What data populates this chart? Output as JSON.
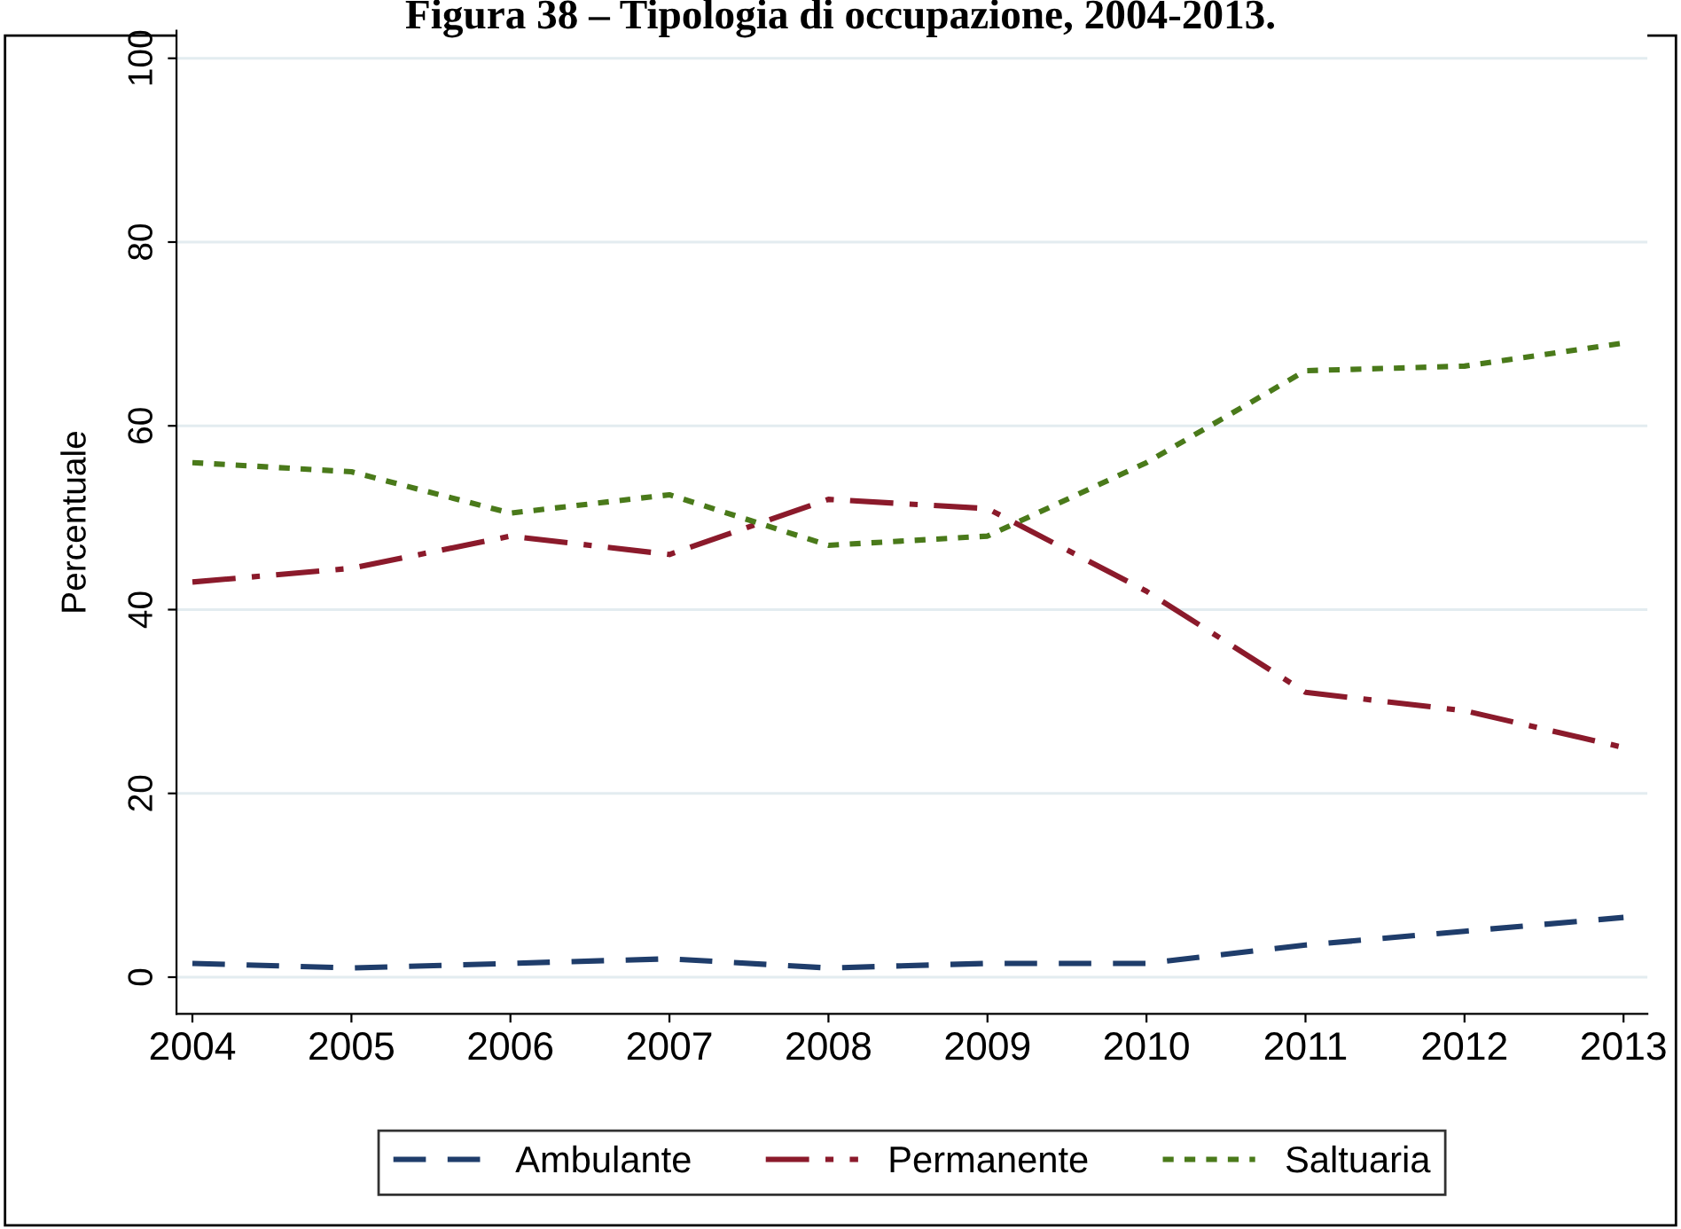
{
  "chart_data": {
    "type": "line",
    "title": "Figura 38 – Tipologia di occupazione, 2004-2013.",
    "ylabel": "Percentuale",
    "x": [
      2004,
      2005,
      2006,
      2007,
      2008,
      2009,
      2010,
      2011,
      2012,
      2013
    ],
    "series": [
      {
        "name": "Ambulante",
        "color": "#1f3d6b",
        "line_style": "dashed",
        "values": [
          1.5,
          1,
          1.5,
          2,
          1,
          1.5,
          1.5,
          3.5,
          5,
          6.5
        ]
      },
      {
        "name": "Permanente",
        "color": "#8b1a2b",
        "line_style": "dashdot",
        "values": [
          43,
          44.5,
          48,
          46,
          52,
          51,
          42,
          31,
          29,
          25
        ]
      },
      {
        "name": "Saltuaria",
        "color": "#4a7a1a",
        "line_style": "dotted",
        "values": [
          56,
          55,
          50.5,
          52.5,
          47,
          48,
          56,
          66,
          66.5,
          69
        ]
      }
    ],
    "xlim": [
      2003.9,
      2013.15
    ],
    "xticks": [
      2004,
      2005,
      2006,
      2007,
      2008,
      2009,
      2010,
      2011,
      2012,
      2013
    ],
    "ylim": [
      -4,
      103
    ],
    "yticks": [
      0,
      20,
      40,
      60,
      80,
      100
    ],
    "grid": "y",
    "legend": "bottom",
    "marker": "none"
  }
}
